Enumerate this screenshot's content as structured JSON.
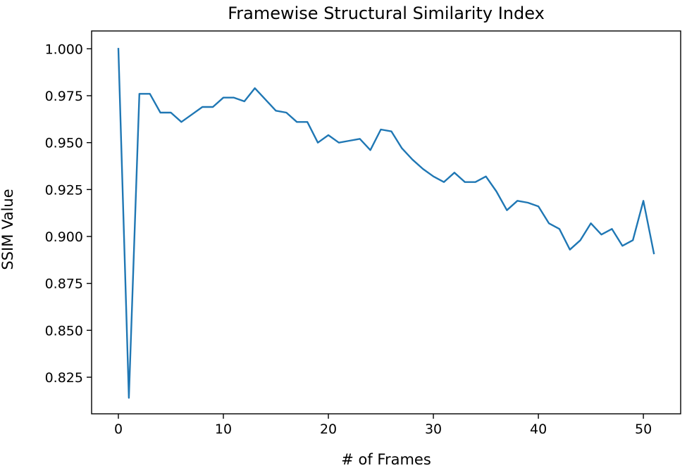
{
  "chart_data": {
    "type": "line",
    "title": "Framewise Structural Similarity Index",
    "xlabel": "# of Frames",
    "ylabel": "SSIM Value",
    "xlim": [
      -2.55,
      53.55
    ],
    "ylim": [
      0.8055,
      1.0095
    ],
    "xticks": [
      0,
      10,
      20,
      30,
      40,
      50
    ],
    "xtick_labels": [
      "0",
      "10",
      "20",
      "30",
      "40",
      "50"
    ],
    "yticks": [
      0.825,
      0.85,
      0.875,
      0.9,
      0.925,
      0.95,
      0.975,
      1.0
    ],
    "ytick_labels": [
      "0.825",
      "0.850",
      "0.875",
      "0.900",
      "0.925",
      "0.950",
      "0.975",
      "1.000"
    ],
    "grid": false,
    "line_color": "#1f77b4",
    "series": [
      {
        "x": [
          0,
          1,
          2,
          3,
          4,
          5,
          6,
          7,
          8,
          9,
          10,
          11,
          12,
          13,
          14,
          15,
          16,
          17,
          18,
          19,
          20,
          21,
          22,
          23,
          24,
          25,
          26,
          27,
          28,
          29,
          30,
          31,
          32,
          33,
          34,
          35,
          36,
          37,
          38,
          39,
          40,
          41,
          42,
          43,
          44,
          45,
          46,
          47,
          48,
          49,
          50,
          51
        ],
        "values": [
          1.0,
          0.814,
          0.976,
          0.976,
          0.966,
          0.966,
          0.961,
          0.965,
          0.969,
          0.969,
          0.974,
          0.974,
          0.972,
          0.979,
          0.973,
          0.967,
          0.966,
          0.961,
          0.961,
          0.95,
          0.954,
          0.95,
          0.951,
          0.952,
          0.946,
          0.957,
          0.956,
          0.947,
          0.941,
          0.936,
          0.932,
          0.929,
          0.934,
          0.929,
          0.929,
          0.932,
          0.924,
          0.914,
          0.919,
          0.918,
          0.916,
          0.907,
          0.904,
          0.893,
          0.898,
          0.907,
          0.901,
          0.904,
          0.895,
          0.898,
          0.919,
          0.891
        ]
      }
    ]
  }
}
